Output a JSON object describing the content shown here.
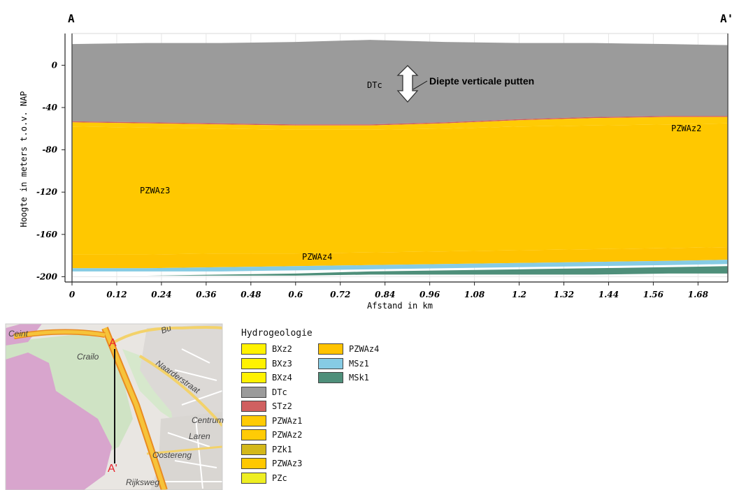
{
  "section": {
    "start_label": "A",
    "end_label": "A'",
    "y_axis_title": "Hoogte in meters t.o.v. NAP",
    "x_axis_title": "Afstand in km",
    "y_ticks": [
      "0",
      "-40",
      "-80",
      "-120",
      "-160",
      "-200"
    ],
    "x_ticks": [
      "0",
      "0.12",
      "0.24",
      "0.36",
      "0.48",
      "0.6",
      "0.72",
      "0.84",
      "0.96",
      "1.08",
      "1.2",
      "1.32",
      "1.44",
      "1.56",
      "1.68"
    ],
    "layer_labels": {
      "dtc": "DTc",
      "pzwaz2": "PZWAz2",
      "pzwaz3": "PZWAz3",
      "pzwaz4": "PZWAz4"
    },
    "annotation": "Diepte verticale putten"
  },
  "chart_data": {
    "type": "area",
    "xlabel": "Afstand in km",
    "ylabel": "Hoogte in meters t.o.v. NAP",
    "x_range": [
      0,
      1.76
    ],
    "y_range": [
      -205,
      30
    ],
    "grid": true,
    "x": [
      0,
      0.2,
      0.4,
      0.6,
      0.8,
      1.0,
      1.2,
      1.4,
      1.6,
      1.76
    ],
    "layers": [
      {
        "name": "DTc",
        "color": "#9b9b9b",
        "top": [
          20,
          21,
          21,
          22,
          24,
          22,
          21,
          21,
          20,
          19
        ],
        "bottom": [
          -53,
          -54,
          -55,
          -56,
          -56,
          -54,
          -51,
          -49,
          -48,
          -48
        ]
      },
      {
        "name": "STz2",
        "color": "#d06060",
        "top": [
          -53,
          -54,
          -55,
          -56,
          -56,
          -54,
          -51,
          -49,
          -48,
          -48
        ],
        "bottom": [
          -54,
          -55,
          -56,
          -57,
          -57,
          -55,
          -52,
          -50,
          -49,
          -49
        ]
      },
      {
        "name": "PZWAz2",
        "color": "#ffcb05",
        "top": [
          -54,
          -55,
          -56,
          -57,
          -57,
          -55,
          -52,
          -50,
          -49,
          -49
        ],
        "bottom": [
          -58,
          -59,
          -60,
          -61,
          -61,
          -60,
          -58,
          -57,
          -56,
          -55
        ]
      },
      {
        "name": "PZWAz3",
        "color": "#ffc800",
        "top": [
          -58,
          -59,
          -60,
          -61,
          -61,
          -60,
          -58,
          -57,
          -56,
          -55
        ],
        "bottom": [
          -179,
          -179,
          -178,
          -178,
          -177,
          -176,
          -175,
          -174,
          -173,
          -172
        ]
      },
      {
        "name": "PZWAz4",
        "color": "#ffc300",
        "top": [
          -179,
          -179,
          -178,
          -178,
          -177,
          -176,
          -175,
          -174,
          -173,
          -172
        ],
        "bottom": [
          -192,
          -192,
          -191,
          -190,
          -189,
          -188,
          -187,
          -186,
          -185,
          -184
        ]
      },
      {
        "name": "MSz1",
        "color": "#86cbe4",
        "top": [
          -192,
          -192,
          -191,
          -190,
          -189,
          -188,
          -187,
          -186,
          -185,
          -184
        ],
        "bottom": [
          -195,
          -195,
          -195,
          -194,
          -193,
          -192,
          -191,
          -190,
          -189,
          -188
        ]
      },
      {
        "name": "MSk1",
        "color": "#4e8f7a",
        "top": [
          -199,
          -199,
          -198,
          -197,
          -195,
          -194,
          -193,
          -192,
          -191,
          -190
        ],
        "bottom": [
          -199,
          -199,
          -199,
          -199,
          -198,
          -198,
          -198,
          -198,
          -197,
          -197
        ]
      }
    ]
  },
  "map": {
    "labels": [
      "Ceint",
      "Bu",
      "Crailo",
      "Naarderstraat",
      "Centrum",
      "Laren",
      "Oostereng",
      "Rijksweg"
    ],
    "point_a": "A",
    "point_a_prime": "A'"
  },
  "legend": {
    "title": "Hydrogeologie",
    "items": [
      {
        "label": "BXz2",
        "color": "#fff200"
      },
      {
        "label": "BXz3",
        "color": "#fff200"
      },
      {
        "label": "BXz4",
        "color": "#fff200"
      },
      {
        "label": "DTc",
        "color": "#9b9b9b"
      },
      {
        "label": "STz2",
        "color": "#d06060"
      },
      {
        "label": "PZWAz1",
        "color": "#ffcb05"
      },
      {
        "label": "PZWAz2",
        "color": "#ffcb05"
      },
      {
        "label": "PZk1",
        "color": "#d4b81a"
      },
      {
        "label": "PZWAz3",
        "color": "#ffc800"
      },
      {
        "label": "PZc",
        "color": "#eeee22"
      },
      {
        "label": "PZWAz4",
        "color": "#ffc300"
      },
      {
        "label": "MSz1",
        "color": "#86cbe4"
      },
      {
        "label": "MSk1",
        "color": "#4e8f7a"
      }
    ]
  }
}
